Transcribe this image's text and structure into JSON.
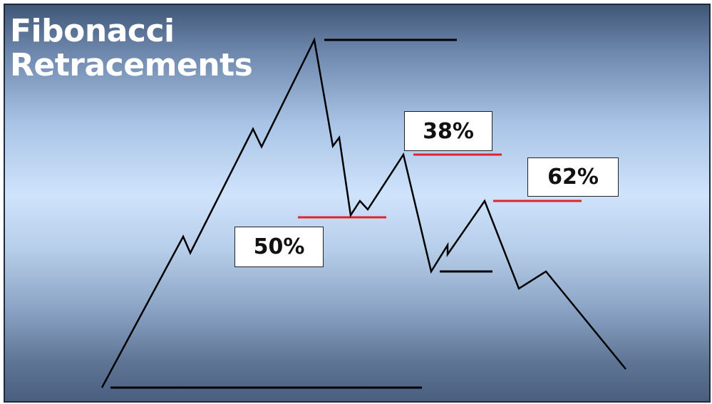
{
  "title": {
    "line1": "Fibonacci",
    "line2": "Retracements"
  },
  "levels": {
    "fib_38": "38%",
    "fib_50": "50%",
    "fib_62": "62%"
  },
  "colors": {
    "retracement_line": "#e0242a",
    "price_line": "#000000",
    "reference_line": "#000000",
    "title_text": "#ffffff"
  }
}
